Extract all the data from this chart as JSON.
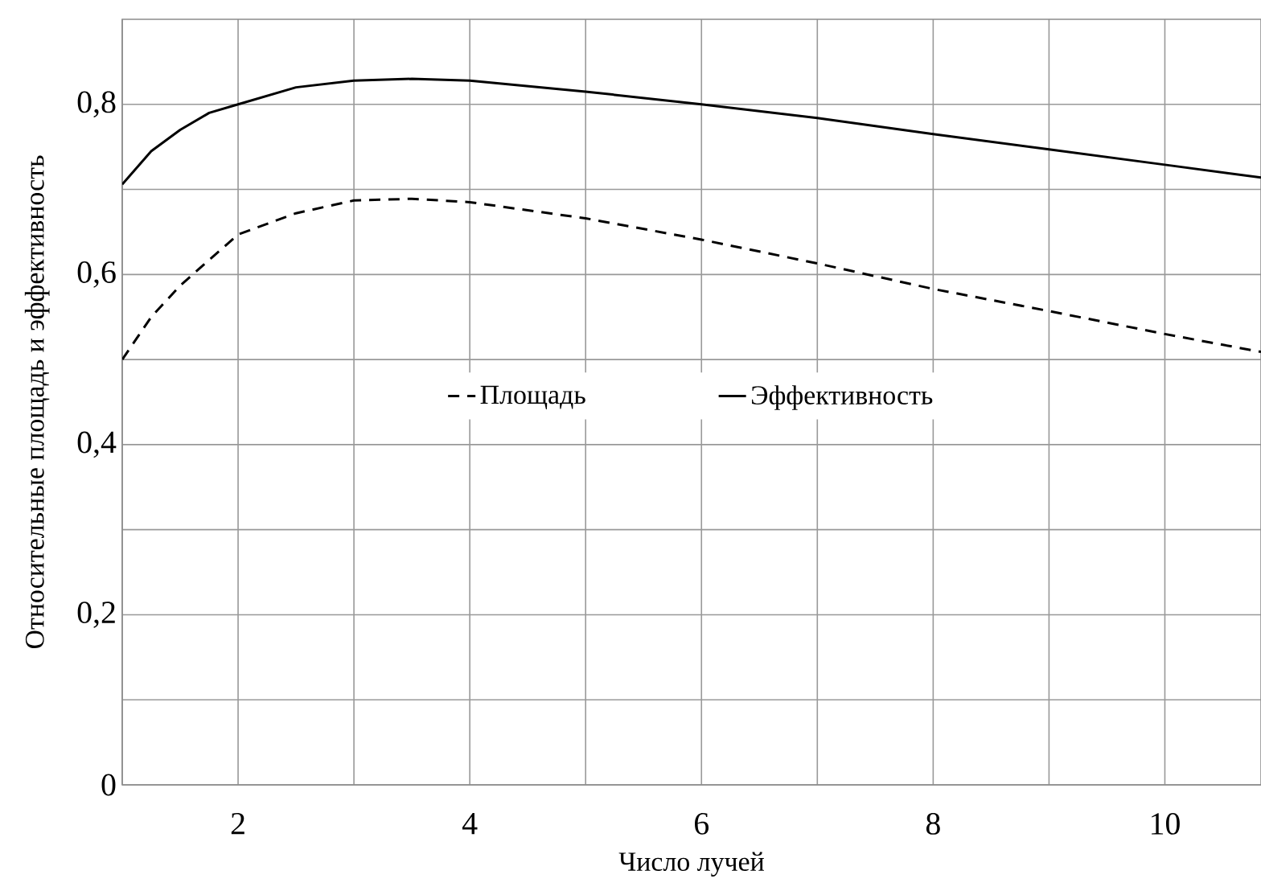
{
  "chart_data": {
    "type": "line",
    "xlabel": "Число лучей",
    "ylabel": "Относительные площадь и эффективность",
    "xlim": [
      1,
      10.83
    ],
    "ylim": [
      0,
      0.9
    ],
    "xticks": [
      {
        "value": 1,
        "label": null
      },
      2,
      {
        "value": 3,
        "label": null
      },
      4,
      {
        "value": 5,
        "label": null
      },
      6,
      {
        "value": 7,
        "label": null
      },
      8,
      {
        "value": 9,
        "label": null
      },
      10
    ],
    "yticks": [
      0,
      {
        "value": 0.1,
        "label": null
      },
      {
        "value": 0.2,
        "label": "0,2"
      },
      {
        "value": 0.3,
        "label": null
      },
      {
        "value": 0.4,
        "label": "0,4"
      },
      {
        "value": 0.5,
        "label": null
      },
      {
        "value": 0.6,
        "label": "0,6"
      },
      {
        "value": 0.7,
        "label": null
      },
      {
        "value": 0.8,
        "label": "0,8"
      }
    ],
    "grid": true,
    "legend": "center",
    "series": [
      {
        "name": "Площадь",
        "color": "#000000",
        "line_style": "dashed",
        "x": [
          1,
          1.25,
          1.5,
          2,
          2.5,
          3,
          3.5,
          4,
          5,
          6,
          7,
          8,
          9,
          10,
          10.83
        ],
        "values": [
          0.5,
          0.55,
          0.587,
          0.647,
          0.672,
          0.687,
          0.689,
          0.685,
          0.666,
          0.641,
          0.613,
          0.583,
          0.557,
          0.53,
          0.509
        ]
      },
      {
        "name": "Эффективность",
        "color": "#000000",
        "line_style": "solid",
        "x": [
          1,
          1.25,
          1.5,
          1.75,
          2,
          2.5,
          3,
          3.5,
          4,
          5,
          6,
          7,
          8,
          9,
          10,
          10.83
        ],
        "values": [
          0.706,
          0.745,
          0.77,
          0.79,
          0.8,
          0.82,
          0.828,
          0.83,
          0.828,
          0.815,
          0.8,
          0.784,
          0.765,
          0.747,
          0.729,
          0.714
        ]
      }
    ]
  }
}
